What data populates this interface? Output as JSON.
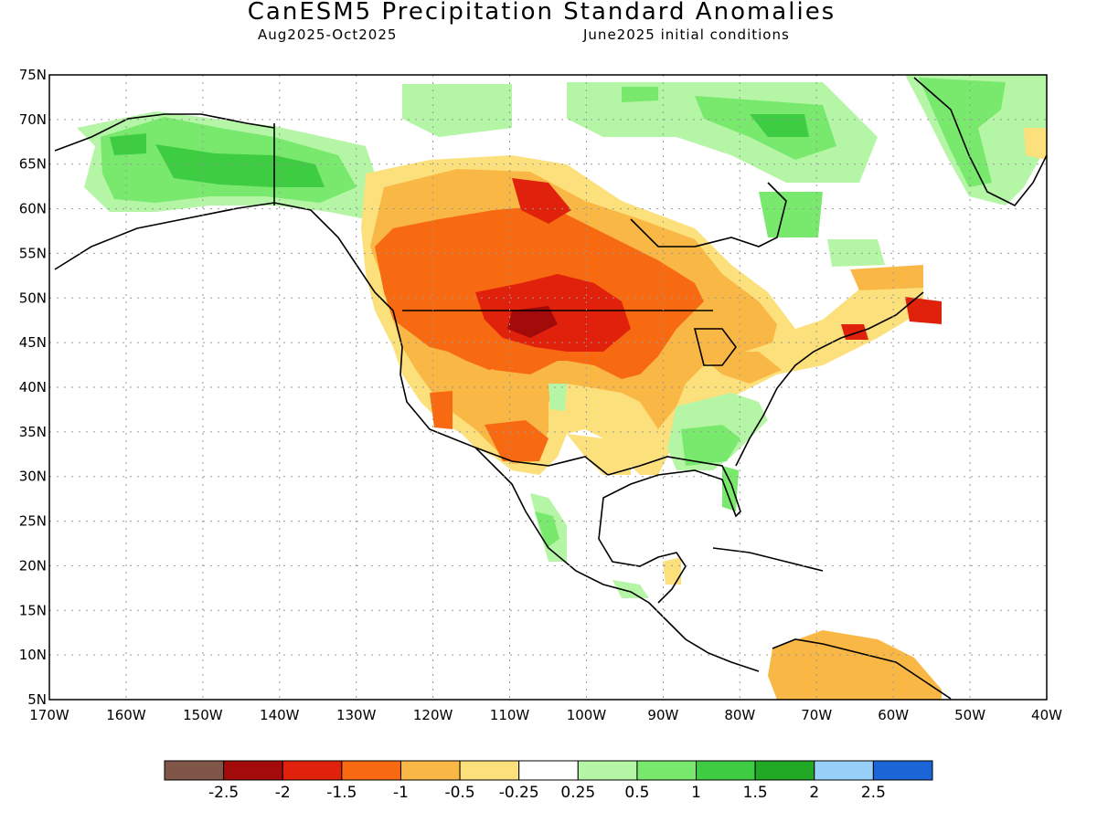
{
  "title": "CanESM5 Precipitation Standard Anomalies",
  "period": "Aug2025-Oct2025",
  "init": "June2025 initial conditions",
  "lat_labels": [
    "75N",
    "70N",
    "65N",
    "60N",
    "55N",
    "50N",
    "45N",
    "40N",
    "35N",
    "30N",
    "25N",
    "20N",
    "15N",
    "10N",
    "5N"
  ],
  "lon_labels": [
    "170W",
    "160W",
    "150W",
    "140W",
    "130W",
    "120W",
    "110W",
    "100W",
    "90W",
    "80W",
    "70W",
    "60W",
    "50W",
    "40W"
  ],
  "colorbar": {
    "colors": [
      "#7f5648",
      "#a30b0b",
      "#e0220c",
      "#f86a12",
      "#f9b845",
      "#fbe07c",
      "#ffffff",
      "#b5f5a6",
      "#78e96d",
      "#3dcc42",
      "#21a926",
      "#97d0f8",
      "#1b66d6"
    ],
    "labels": [
      "-2.5",
      "-2",
      "-1.5",
      "-1",
      "-0.5",
      "-0.25",
      "0.25",
      "0.5",
      "1",
      "1.5",
      "2",
      "2.5"
    ]
  }
}
